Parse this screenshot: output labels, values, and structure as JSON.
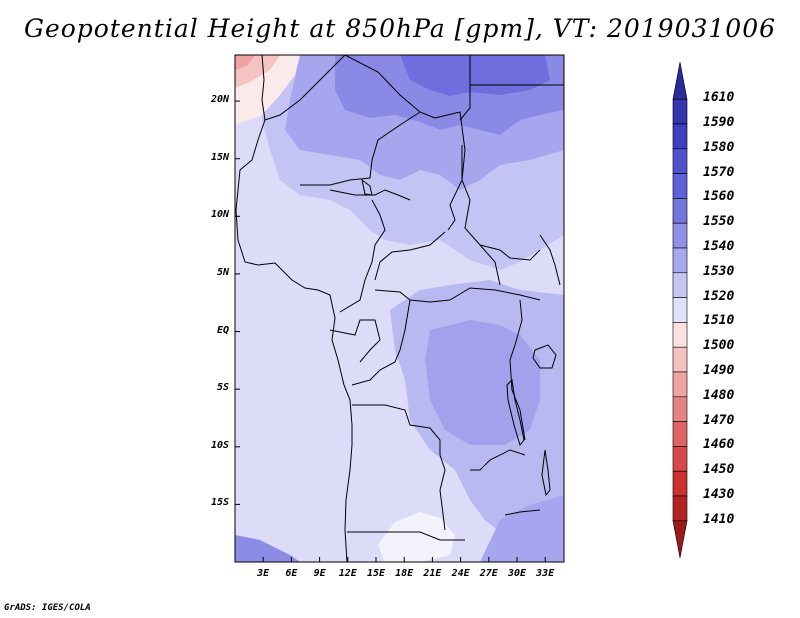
{
  "title": "Geopotential Height at 850hPa [gpm], VT: 2019031006",
  "credit": "GrADS: IGES/COLA",
  "map": {
    "lat_range": [
      -20,
      24
    ],
    "lon_range": [
      0,
      35
    ],
    "lat_labels": [
      "20N",
      "15N",
      "10N",
      "5N",
      "EQ",
      "5S",
      "10S",
      "15S"
    ],
    "lat_values": [
      20,
      15,
      10,
      5,
      0,
      -5,
      -10,
      -15
    ],
    "lon_labels": [
      "3E",
      "6E",
      "9E",
      "12E",
      "15E",
      "18E",
      "21E",
      "24E",
      "27E",
      "30E",
      "33E"
    ],
    "lon_values": [
      3,
      6,
      9,
      12,
      15,
      18,
      21,
      24,
      27,
      30,
      33
    ]
  },
  "colorbar": {
    "labels": [
      "1610",
      "1590",
      "1580",
      "1570",
      "1560",
      "1550",
      "1540",
      "1530",
      "1520",
      "1510",
      "1500",
      "1490",
      "1480",
      "1470",
      "1460",
      "1450",
      "1430",
      "1410"
    ],
    "colors": [
      "#2a2a99",
      "#3535b2",
      "#4040c3",
      "#5050ce",
      "#6060d8",
      "#7676df",
      "#9090e7",
      "#a8a8ee",
      "#c6c6f4",
      "#e0e0fb",
      "#fbe0e0",
      "#f6c3c3",
      "#efa3a3",
      "#e88383",
      "#e06464",
      "#d84848",
      "#cc3131",
      "#b32222",
      "#9a1a1a"
    ]
  }
}
